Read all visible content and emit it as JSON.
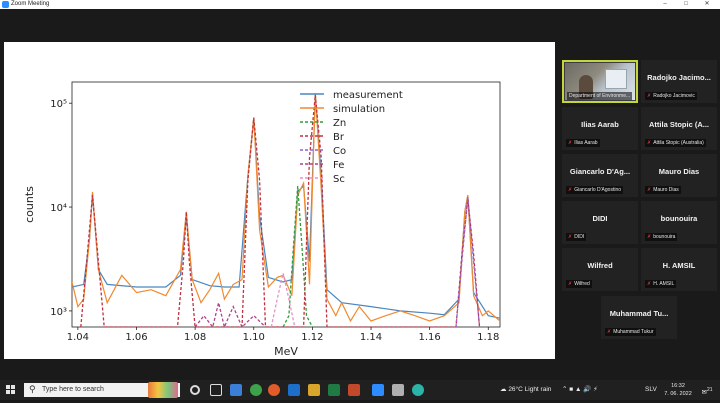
{
  "window": {
    "title": "Zoom Meeting"
  },
  "participants": [
    {
      "name": "",
      "tag": "Department of Environme..."
    },
    {
      "name": "Radojko Jacimo...",
      "tag": "Radojko Jacimovic"
    },
    {
      "name": "Ilias Aarab",
      "tag": "Ilias Aarab"
    },
    {
      "name": "Attila Stopic (A...",
      "tag": "Attila Stopic (Australia)"
    },
    {
      "name": "Giancarlo D'Ag...",
      "tag": "Giancarlo D'Agostino"
    },
    {
      "name": "Mauro Dias",
      "tag": "Mauro Dias"
    },
    {
      "name": "DIDI",
      "tag": "DIDI"
    },
    {
      "name": "bounouira",
      "tag": "bounouira"
    },
    {
      "name": "Wilfred",
      "tag": "Wilfred"
    },
    {
      "name": "H. AMSIL",
      "tag": "H. AMSIL"
    },
    {
      "name": "Muhammad Tu...",
      "tag": "Muhammad Tukur"
    }
  ],
  "taskbar": {
    "search_placeholder": "Type here to search",
    "weather": "26°C  Light rain",
    "language": "SLV",
    "time": "16:32",
    "date": "7. 06. 2022",
    "notifications": "21"
  },
  "chart_data": {
    "type": "line",
    "xlabel": "MeV",
    "ylabel": "counts",
    "y_scale": "log",
    "xlim": [
      1.038,
      1.184
    ],
    "ylim": [
      700,
      160000
    ],
    "x_ticks": [
      "1.04",
      "1.06",
      "1.08",
      "1.10",
      "1.12",
      "1.14",
      "1.16",
      "1.18"
    ],
    "y_ticks": [
      "10³",
      "10⁴",
      "10⁵"
    ],
    "legend_position": "top-right",
    "legend": [
      "measurement",
      "simulation",
      "Zn",
      "Br",
      "Co",
      "Fe",
      "Sc"
    ],
    "colors": {
      "measurement": "#4a86c0",
      "simulation": "#f08a30",
      "Zn": "#2e9d3a",
      "Br": "#c03040",
      "Co": "#9860c8",
      "Fe": "#b0408c",
      "Sc": "#e890c8"
    },
    "series": [
      {
        "name": "measurement",
        "x": [
          1.038,
          1.042,
          1.044,
          1.045,
          1.047,
          1.05,
          1.06,
          1.07,
          1.075,
          1.077,
          1.079,
          1.085,
          1.09,
          1.095,
          1.098,
          1.1,
          1.102,
          1.105,
          1.11,
          1.113,
          1.115,
          1.117,
          1.119,
          1.121,
          1.123,
          1.125,
          1.13,
          1.14,
          1.15,
          1.16,
          1.165,
          1.17,
          1.172,
          1.173,
          1.175,
          1.18,
          1.184
        ],
        "y": [
          1700,
          1800,
          5000,
          13500,
          2500,
          1800,
          1700,
          1700,
          2200,
          8000,
          2000,
          1750,
          1700,
          1700,
          20000,
          73000,
          8000,
          2100,
          1900,
          2000,
          14000,
          16000,
          3000,
          120000,
          20000,
          1600,
          1200,
          1100,
          1000,
          950,
          920,
          1300,
          9000,
          13000,
          1500,
          900,
          850
        ]
      },
      {
        "name": "simulation",
        "x": [
          1.038,
          1.04,
          1.042,
          1.044,
          1.045,
          1.047,
          1.05,
          1.055,
          1.06,
          1.065,
          1.07,
          1.075,
          1.077,
          1.079,
          1.082,
          1.085,
          1.088,
          1.09,
          1.093,
          1.096,
          1.098,
          1.1,
          1.102,
          1.105,
          1.108,
          1.11,
          1.113,
          1.115,
          1.117,
          1.119,
          1.121,
          1.123,
          1.125,
          1.128,
          1.13,
          1.133,
          1.136,
          1.14,
          1.145,
          1.15,
          1.155,
          1.16,
          1.165,
          1.17,
          1.172,
          1.173,
          1.175,
          1.178,
          1.18,
          1.184
        ],
        "y": [
          1900,
          1100,
          1300,
          5000,
          14000,
          2500,
          1200,
          2200,
          1500,
          1600,
          1400,
          2500,
          9000,
          2000,
          1200,
          1600,
          2300,
          1300,
          1800,
          2000,
          20000,
          73000,
          6000,
          1700,
          2100,
          2200,
          1400,
          13000,
          17000,
          1800,
          125000,
          15000,
          1300,
          900,
          1200,
          800,
          1100,
          800,
          900,
          1000,
          900,
          800,
          900,
          1200,
          9000,
          13000,
          1400,
          900,
          1000,
          800
        ]
      },
      {
        "name": "Zn",
        "x": [
          1.11,
          1.112,
          1.1135,
          1.115,
          1.1165,
          1.118,
          1.12
        ],
        "y": [
          700,
          900,
          4000,
          16000,
          4000,
          900,
          700
        ]
      },
      {
        "name": "Br",
        "x": [
          1.041,
          1.043,
          1.045,
          1.047,
          1.049,
          1.074,
          1.076,
          1.077,
          1.078,
          1.08,
          1.096,
          1.098,
          1.1,
          1.102,
          1.104,
          1.117,
          1.119,
          1.121,
          1.123,
          1.125,
          1.169,
          1.171,
          1.173,
          1.175,
          1.177
        ],
        "y": [
          700,
          3000,
          13000,
          3000,
          700,
          700,
          3000,
          9000,
          3000,
          700,
          700,
          18000,
          72000,
          18000,
          700,
          700,
          30000,
          120000,
          30000,
          700,
          700,
          3500,
          12000,
          3500,
          700
        ]
      },
      {
        "name": "Co",
        "x": [
          1.169,
          1.171,
          1.173,
          1.175,
          1.177
        ],
        "y": [
          700,
          3000,
          12500,
          3000,
          700
        ]
      },
      {
        "name": "Fe",
        "x": [
          1.08,
          1.083,
          1.086,
          1.088,
          1.09,
          1.093,
          1.096,
          1.1,
          1.104
        ],
        "y": [
          700,
          900,
          700,
          1200,
          700,
          1100,
          700,
          900,
          700
        ]
      },
      {
        "name": "Sc",
        "x": [
          1.106,
          1.108,
          1.11,
          1.112,
          1.114
        ],
        "y": [
          700,
          1300,
          2300,
          1300,
          700
        ]
      }
    ]
  }
}
